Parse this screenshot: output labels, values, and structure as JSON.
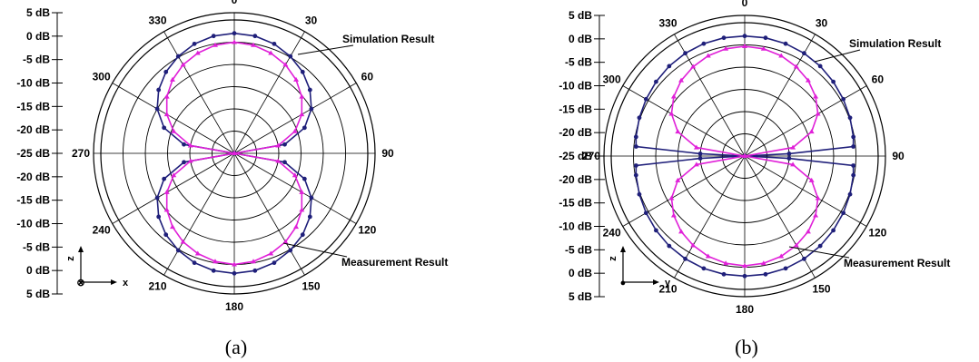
{
  "chart_data": [
    {
      "type": "polar",
      "panel_label": "(a)",
      "r_tick_labels": [
        "5 dB",
        "0 dB",
        "-5 dB",
        "-10 dB",
        "-15 dB",
        "-20 dB",
        "-25 dB",
        "-20 dB",
        "-15 dB",
        "-10 dB",
        "-5 dB",
        "0 dB",
        "5 dB"
      ],
      "r_range_db": [
        -25,
        5
      ],
      "angle_labels": [
        "0",
        "30",
        "60",
        "90",
        "120",
        "150",
        "180",
        "210",
        "240",
        "270",
        "300",
        "330"
      ],
      "annotations": {
        "simulation": "Simulation Result",
        "measurement": "Measurement Result"
      },
      "axis_indicator": {
        "up": "z",
        "right": "x",
        "origin_symbol": "⊗"
      },
      "series": [
        {
          "name": "Simulation Result",
          "color": "#1f1f7a",
          "angles_deg": [
            0,
            10,
            20,
            30,
            40,
            50,
            60,
            70,
            80,
            90,
            100,
            110,
            120,
            130,
            140,
            150,
            160,
            170,
            180,
            190,
            200,
            210,
            220,
            230,
            240,
            250,
            260,
            270,
            280,
            290,
            300,
            310,
            320,
            330,
            340,
            350
          ],
          "gain_db": [
            2,
            1.8,
            1.2,
            0.2,
            -1.1,
            -2.8,
            -5,
            -8.2,
            -13.5,
            -25,
            -13.5,
            -8.2,
            -5,
            -2.8,
            -1.1,
            0.2,
            1.2,
            1.8,
            2,
            1.8,
            1.2,
            0.2,
            -1.1,
            -2.8,
            -5,
            -8.2,
            -13.5,
            -25,
            -13.5,
            -8.2,
            -5,
            -2.8,
            -1.1,
            0.2,
            1.2,
            1.8
          ]
        },
        {
          "name": "Measurement Result",
          "color": "#e020d8",
          "angles_deg": [
            0,
            10,
            20,
            30,
            40,
            50,
            60,
            70,
            80,
            90,
            100,
            110,
            120,
            130,
            140,
            150,
            160,
            170,
            180,
            190,
            200,
            210,
            220,
            230,
            240,
            250,
            260,
            270,
            280,
            290,
            300,
            310,
            320,
            330,
            340,
            350
          ],
          "gain_db": [
            0,
            -0.3,
            -1,
            -2,
            -3.4,
            -5.2,
            -7.5,
            -10.5,
            -15,
            -25,
            -15,
            -10.5,
            -7.5,
            -5.2,
            -3.4,
            -2,
            -1,
            -0.3,
            0,
            -0.3,
            -1,
            -2,
            -3.4,
            -5.2,
            -7.5,
            -10.5,
            -15,
            -25,
            -15,
            -10.5,
            -7.5,
            -5.2,
            -3.4,
            -2,
            -1,
            -0.3
          ]
        }
      ]
    },
    {
      "type": "polar",
      "panel_label": "(b)",
      "r_tick_labels": [
        "5 dB",
        "0 dB",
        "-5 dB",
        "-10 dB",
        "-15 dB",
        "-20 dB",
        "-25 dB",
        "-20 dB",
        "-15 dB",
        "-10 dB",
        "-5 dB",
        "0 dB",
        "5 dB"
      ],
      "r_range_db": [
        -25,
        5
      ],
      "angle_labels": [
        "0",
        "30",
        "60",
        "90",
        "120",
        "150",
        "180",
        "210",
        "240",
        "270",
        "300",
        "330"
      ],
      "annotations": {
        "simulation": "Simulation Result",
        "measurement": "Measurement Result"
      },
      "axis_indicator": {
        "up": "z",
        "right": "y",
        "origin_symbol": "●"
      },
      "series": [
        {
          "name": "Simulation Result",
          "color": "#1f1f7a",
          "angles_deg": [
            0,
            10,
            20,
            30,
            40,
            50,
            60,
            70,
            80,
            85,
            87,
            90,
            93,
            95,
            100,
            110,
            120,
            130,
            140,
            150,
            160,
            170,
            180,
            190,
            200,
            210,
            220,
            230,
            240,
            250,
            260,
            265,
            267,
            270,
            273,
            275,
            280,
            290,
            300,
            310,
            320,
            330,
            340,
            350
          ],
          "gain_db": [
            2,
            2,
            1.9,
            1.7,
            1.4,
            1,
            0.6,
            0.2,
            -0.2,
            -0.5,
            -15,
            -25,
            -15,
            -0.5,
            -0.2,
            0.2,
            0.6,
            1,
            1.4,
            1.7,
            1.9,
            2,
            2,
            2,
            1.9,
            1.7,
            1.4,
            1,
            0.6,
            0.2,
            -0.2,
            -0.5,
            -15,
            -25,
            -15,
            -0.5,
            -0.2,
            0.2,
            0.6,
            1,
            1.4,
            1.7,
            1.9,
            2
          ]
        },
        {
          "name": "Measurement Result",
          "color": "#e020d8",
          "angles_deg": [
            0,
            10,
            20,
            30,
            40,
            50,
            60,
            70,
            80,
            90,
            100,
            110,
            120,
            130,
            140,
            150,
            160,
            170,
            180,
            190,
            200,
            210,
            220,
            230,
            240,
            250,
            260,
            270,
            280,
            290,
            300,
            310,
            320,
            330,
            340,
            350
          ],
          "gain_db": [
            -0.3,
            -0.5,
            -1,
            -1.8,
            -2.8,
            -4.2,
            -6,
            -9,
            -14,
            -25,
            -14,
            -9,
            -6,
            -4.2,
            -2.8,
            -1.8,
            -1,
            -0.5,
            -0.3,
            -0.5,
            -1,
            -1.8,
            -2.8,
            -4.2,
            -6,
            -9,
            -14,
            -25,
            -14,
            -9,
            -6,
            -4.2,
            -2.8,
            -1.8,
            -1,
            -0.5
          ]
        }
      ]
    }
  ]
}
